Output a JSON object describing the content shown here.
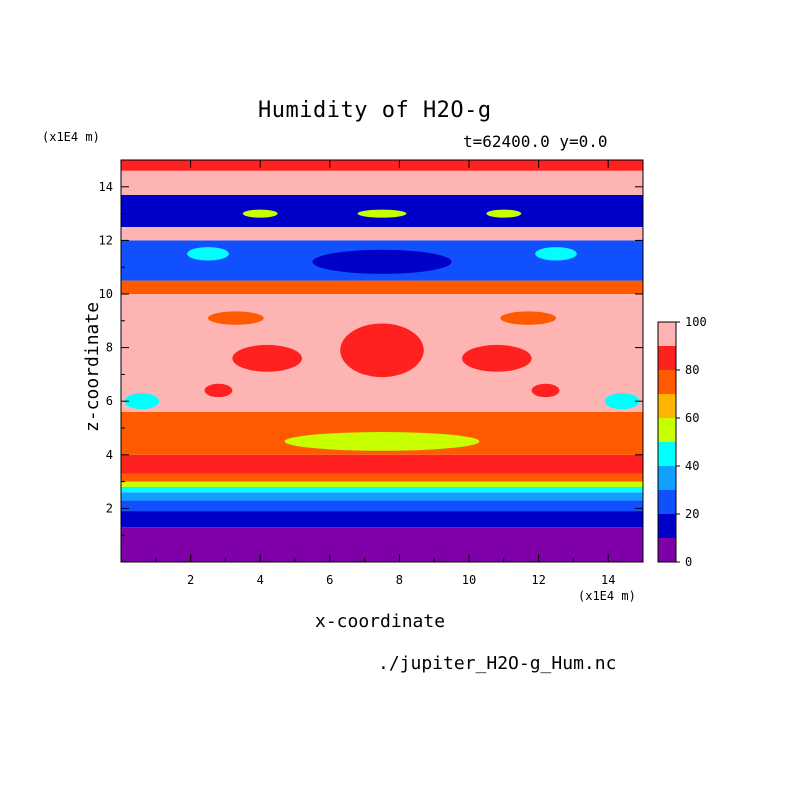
{
  "chart_data": {
    "type": "heatmap",
    "title": "Humidity of H2O-g",
    "subtitle": "t=62400.0 y=0.0",
    "xlabel": "x-coordinate",
    "ylabel": "z-coordinate",
    "x_unit": "(x1E4 m)",
    "y_unit": "(x1E4 m)",
    "source": "./jupiter_H2O-g_Hum.nc",
    "xlim": [
      0,
      15
    ],
    "ylim": [
      0,
      15
    ],
    "x_ticks": [
      "2",
      "4",
      "6",
      "8",
      "10",
      "12",
      "14"
    ],
    "y_ticks": [
      "2",
      "4",
      "6",
      "8",
      "10",
      "12",
      "14"
    ],
    "colorbar": {
      "ticks": [
        "0",
        "20",
        "40",
        "60",
        "80",
        "100"
      ],
      "levels": [
        0,
        10,
        20,
        30,
        40,
        50,
        60,
        70,
        80,
        90,
        100
      ],
      "colors": [
        "#7f00a8",
        "#0000c8",
        "#1050ff",
        "#10a0ff",
        "#00ffff",
        "#c8ff00",
        "#ffb400",
        "#ff5a00",
        "#ff2020",
        "#ffb4b4"
      ]
    },
    "layers": [
      {
        "z": [
          0.0,
          1.3
        ],
        "value": 5
      },
      {
        "z": [
          1.3,
          1.9
        ],
        "value": 15
      },
      {
        "z": [
          1.9,
          2.3
        ],
        "value": 25
      },
      {
        "z": [
          2.3,
          2.6
        ],
        "value": 35
      },
      {
        "z": [
          2.6,
          2.8
        ],
        "value": 45
      },
      {
        "z": [
          2.8,
          3.0
        ],
        "value": 55
      },
      {
        "z": [
          3.0,
          3.3
        ],
        "value": 75
      },
      {
        "z": [
          3.3,
          4.0
        ],
        "value": 85
      },
      {
        "z": [
          4.0,
          5.6
        ],
        "value": 75
      },
      {
        "z": [
          5.6,
          10.0
        ],
        "value": 95
      },
      {
        "z": [
          10.0,
          10.5
        ],
        "value": 75
      },
      {
        "z": [
          10.5,
          12.0
        ],
        "value": 20
      },
      {
        "z": [
          12.0,
          12.5
        ],
        "value": 95
      },
      {
        "z": [
          12.5,
          13.7
        ],
        "value": 15
      },
      {
        "z": [
          13.7,
          14.6
        ],
        "value": 95
      },
      {
        "z": [
          14.6,
          15.0
        ],
        "value": 85
      }
    ],
    "features": [
      {
        "shape": "ellipse",
        "x": 7.5,
        "z": 4.5,
        "rx": 2.8,
        "rz": 0.35,
        "value": 55
      },
      {
        "shape": "ellipse",
        "x": 7.5,
        "z": 7.9,
        "rx": 1.2,
        "rz": 1.0,
        "value": 85
      },
      {
        "shape": "ellipse",
        "x": 4.2,
        "z": 7.6,
        "rx": 1.0,
        "rz": 0.5,
        "value": 85
      },
      {
        "shape": "ellipse",
        "x": 10.8,
        "z": 7.6,
        "rx": 1.0,
        "rz": 0.5,
        "value": 85
      },
      {
        "shape": "ellipse",
        "x": 3.3,
        "z": 9.1,
        "rx": 0.8,
        "rz": 0.25,
        "value": 75
      },
      {
        "shape": "ellipse",
        "x": 11.7,
        "z": 9.1,
        "rx": 0.8,
        "rz": 0.25,
        "value": 75
      },
      {
        "shape": "ellipse",
        "x": 2.8,
        "z": 6.4,
        "rx": 0.4,
        "rz": 0.25,
        "value": 85
      },
      {
        "shape": "ellipse",
        "x": 12.2,
        "z": 6.4,
        "rx": 0.4,
        "rz": 0.25,
        "value": 85
      },
      {
        "shape": "ellipse",
        "x": 0.6,
        "z": 6.0,
        "rx": 0.5,
        "rz": 0.3,
        "value": 45
      },
      {
        "shape": "ellipse",
        "x": 14.4,
        "z": 6.0,
        "rx": 0.5,
        "rz": 0.3,
        "value": 45
      },
      {
        "shape": "ellipse",
        "x": 7.5,
        "z": 11.2,
        "rx": 2.0,
        "rz": 0.45,
        "value": 10
      },
      {
        "shape": "ellipse",
        "x": 2.5,
        "z": 11.5,
        "rx": 0.6,
        "rz": 0.25,
        "value": 45
      },
      {
        "shape": "ellipse",
        "x": 12.5,
        "z": 11.5,
        "rx": 0.6,
        "rz": 0.25,
        "value": 45
      },
      {
        "shape": "ellipse",
        "x": 4.0,
        "z": 13.0,
        "rx": 0.5,
        "rz": 0.15,
        "value": 55
      },
      {
        "shape": "ellipse",
        "x": 7.5,
        "z": 13.0,
        "rx": 0.7,
        "rz": 0.15,
        "value": 55
      },
      {
        "shape": "ellipse",
        "x": 11.0,
        "z": 13.0,
        "rx": 0.5,
        "rz": 0.15,
        "value": 55
      }
    ]
  }
}
